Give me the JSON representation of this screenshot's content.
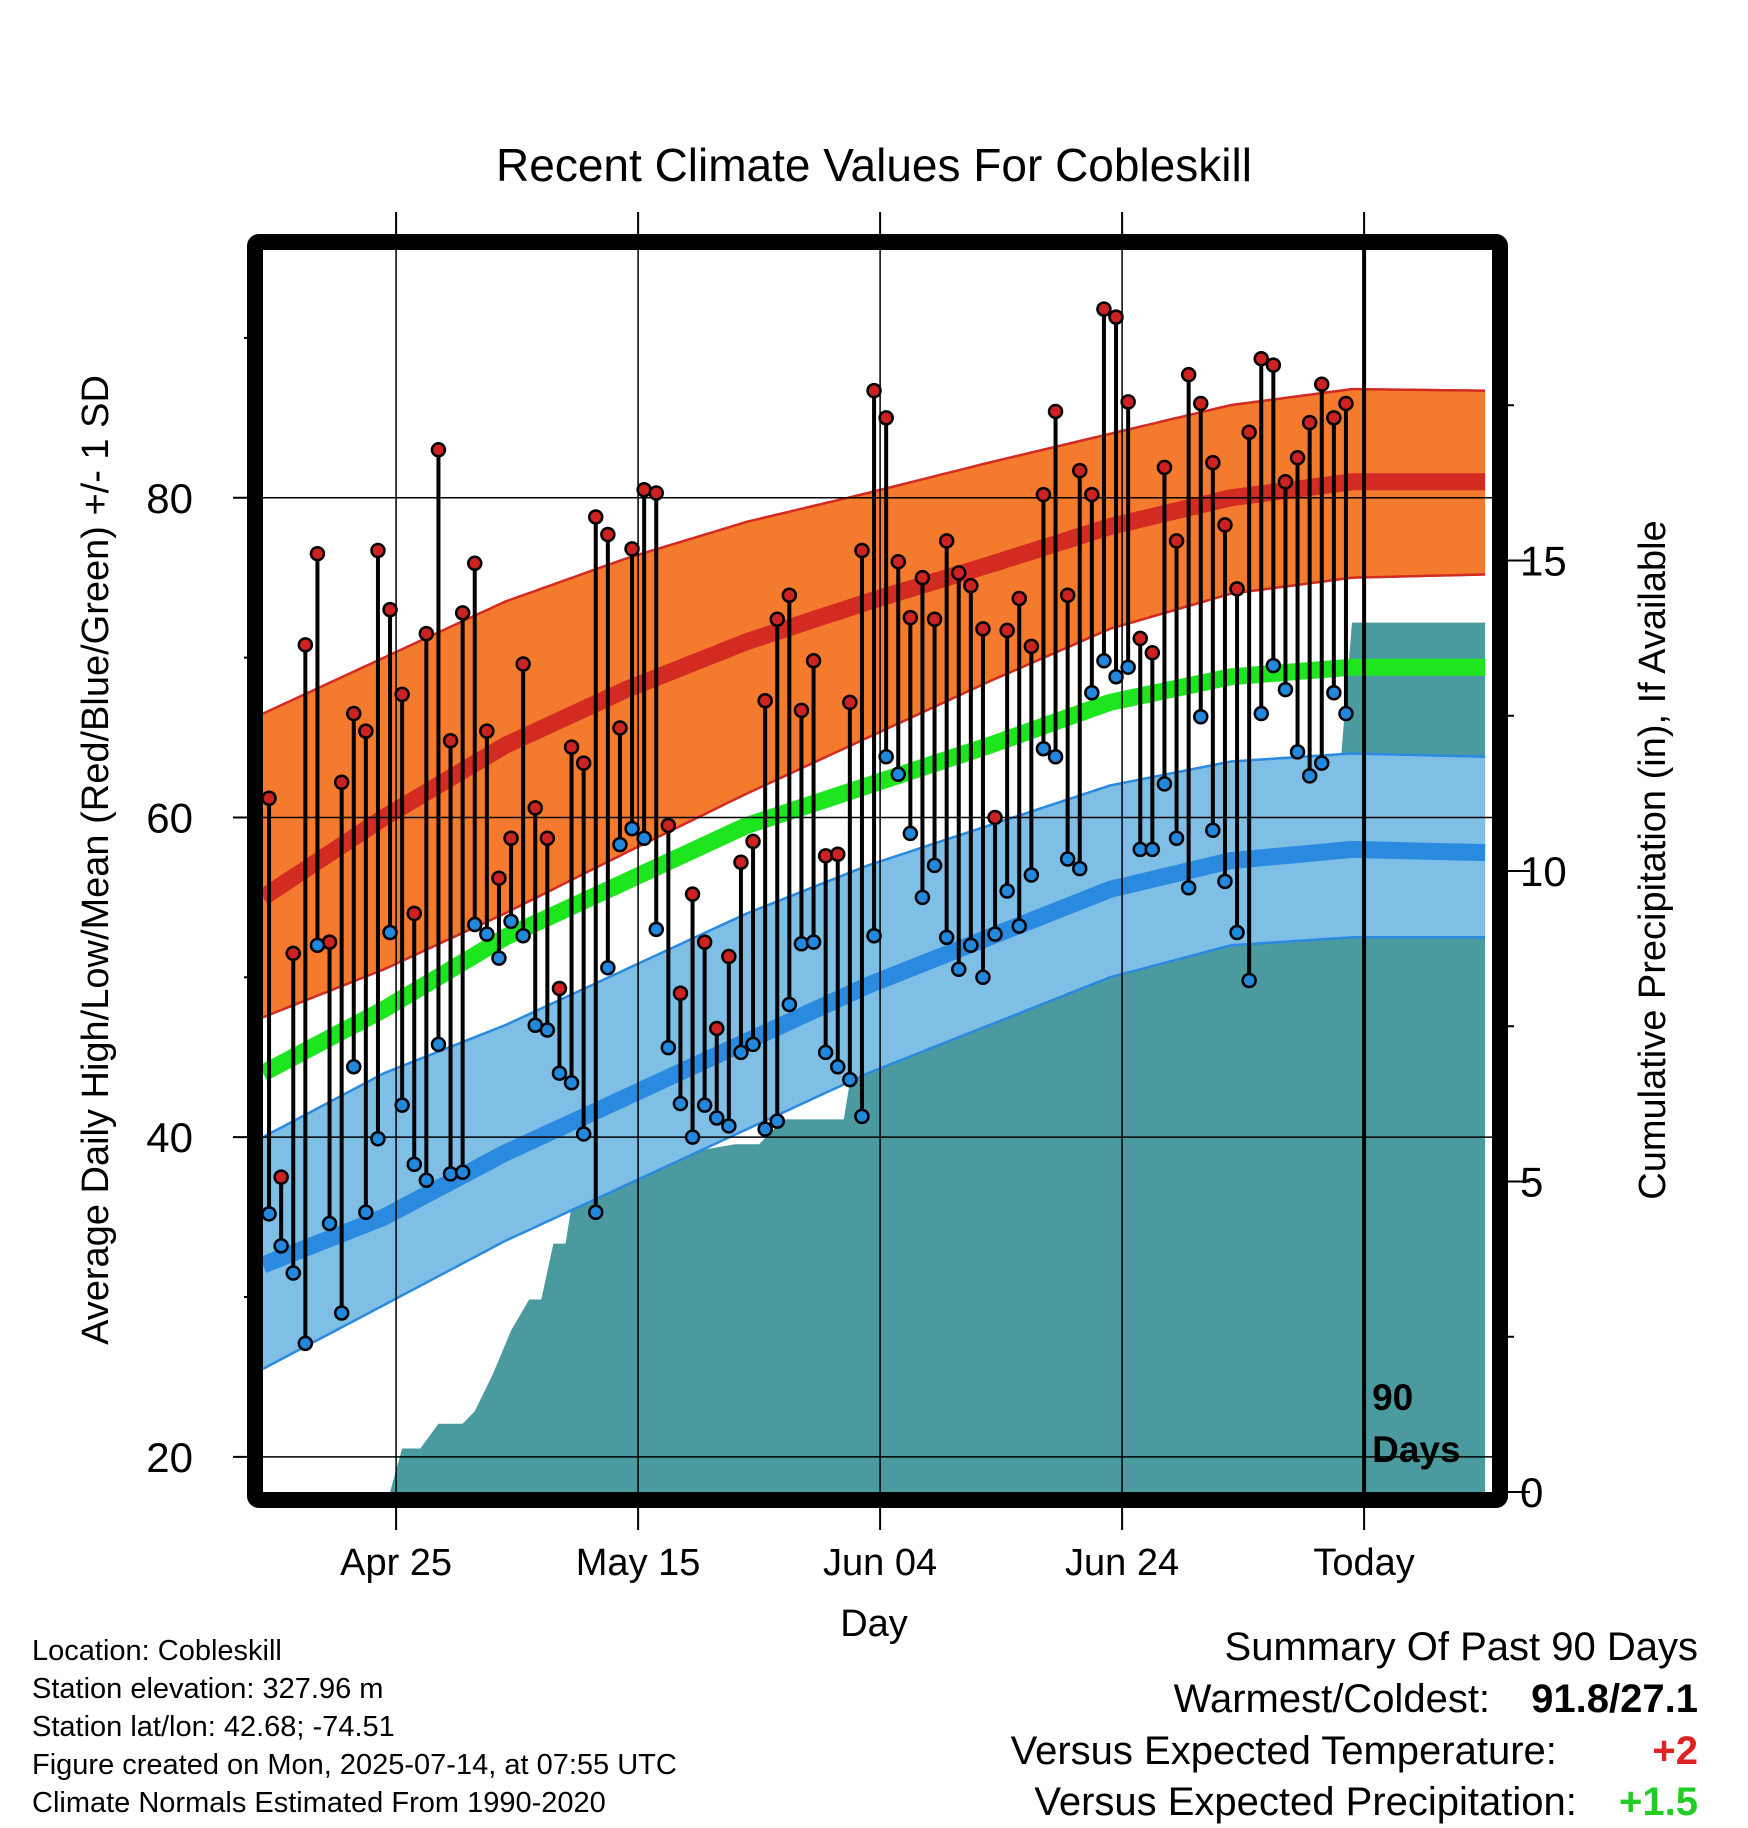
{
  "chart_data": {
    "type": "line",
    "title": "Recent Climate Values For Cobleskill",
    "xlabel": "Day",
    "ylabel": "Average Daily High/Low/Mean (Red/Blue/Green) +/- 1 SD",
    "y2label": "Cumulative Precipitation (in), If Available",
    "x_tick_labels": [
      "Apr 25",
      "May 15",
      "Jun 04",
      "Jun 24",
      "Today"
    ],
    "x_tick_days": [
      11,
      31,
      51,
      71,
      91
    ],
    "y_ticks": [
      "20",
      "40",
      "60",
      "80"
    ],
    "y_tick_values": [
      20,
      40,
      60,
      80
    ],
    "ylim": [
      17.8,
      95.5
    ],
    "y2_ticks": [
      "0",
      "5",
      "10",
      "15"
    ],
    "y2_tick_values": [
      0,
      5,
      10,
      15
    ],
    "y2lim": [
      0,
      20
    ],
    "today_label": "90\nDays",
    "today_day": 91,
    "x_range_days": [
      0,
      101
    ],
    "normals": {
      "days": [
        0,
        10,
        20,
        30,
        40,
        50,
        60,
        70,
        80,
        90,
        101
      ],
      "high_mean": [
        55.0,
        60.0,
        64.5,
        68.0,
        71.0,
        73.5,
        75.8,
        78.2,
        80.0,
        81.0,
        81.0
      ],
      "high_upper": [
        66.5,
        70.0,
        73.5,
        76.2,
        78.5,
        80.3,
        82.2,
        84.0,
        85.8,
        86.8,
        86.7
      ],
      "high_lower": [
        47.5,
        50.5,
        54.0,
        57.8,
        61.5,
        65.0,
        68.5,
        71.8,
        74.0,
        75.0,
        75.2
      ],
      "mean_mean": [
        44.0,
        48.0,
        52.5,
        56.0,
        59.5,
        62.0,
        64.5,
        67.2,
        68.8,
        69.4,
        69.4
      ],
      "low_mean": [
        32.0,
        35.0,
        39.0,
        42.5,
        46.0,
        49.5,
        52.5,
        55.5,
        57.3,
        58.0,
        57.8
      ],
      "low_upper": [
        40.0,
        44.0,
        47.0,
        50.5,
        54.0,
        57.0,
        59.5,
        62.0,
        63.5,
        64.0,
        63.8
      ],
      "low_lower": [
        25.5,
        29.5,
        33.5,
        37.0,
        40.5,
        44.0,
        47.0,
        50.0,
        52.0,
        52.5,
        52.5
      ]
    },
    "series": [
      {
        "name": "High",
        "color": "#cc2222",
        "values": [
          61.2,
          37.5,
          51.5,
          70.8,
          76.5,
          52.2,
          62.2,
          66.5,
          65.4,
          76.7,
          73.0,
          67.7,
          54.0,
          71.5,
          83.0,
          64.8,
          72.8,
          75.9,
          65.4,
          56.2,
          58.7,
          69.6,
          60.6,
          58.7,
          49.3,
          64.4,
          63.4,
          78.8,
          77.7,
          65.6,
          76.8,
          80.5,
          80.3,
          59.5,
          49.0,
          55.2,
          52.2,
          46.8,
          51.3,
          57.2,
          58.5,
          67.3,
          72.4,
          73.9,
          66.7,
          69.8,
          57.6,
          57.7,
          67.2,
          76.7,
          86.7,
          85.0,
          76.0,
          72.5,
          75.0,
          72.4,
          77.3,
          75.3,
          74.5,
          71.8,
          60.0,
          71.7,
          73.7,
          70.7,
          80.2,
          85.4,
          73.9,
          81.7,
          80.2,
          91.8,
          91.3,
          86.0,
          71.2,
          70.3,
          81.9,
          77.3,
          87.7,
          85.9,
          82.2,
          78.3,
          74.3,
          84.1,
          88.7,
          88.3,
          81.0,
          82.5,
          84.7,
          87.1,
          85.0,
          85.9
        ]
      },
      {
        "name": "Low",
        "color": "#2288dd",
        "values": [
          35.2,
          33.2,
          31.5,
          27.1,
          52.0,
          34.6,
          29.0,
          44.4,
          35.3,
          39.9,
          52.8,
          42.0,
          38.3,
          37.3,
          45.8,
          37.7,
          37.8,
          53.3,
          52.7,
          51.2,
          53.5,
          52.6,
          47.0,
          46.7,
          44.0,
          43.4,
          40.2,
          35.3,
          50.6,
          58.3,
          59.3,
          58.7,
          53.0,
          45.6,
          42.1,
          40.0,
          42.0,
          41.2,
          40.7,
          45.3,
          45.8,
          40.5,
          41.0,
          48.3,
          52.1,
          52.2,
          45.3,
          44.4,
          43.6,
          41.3,
          52.6,
          63.8,
          62.7,
          59.0,
          55.0,
          57.0,
          52.5,
          50.5,
          52.0,
          50.0,
          52.7,
          55.4,
          53.2,
          56.4,
          64.3,
          63.8,
          57.4,
          56.8,
          67.8,
          69.8,
          68.8,
          69.4,
          58.0,
          58.0,
          62.1,
          58.7,
          55.6,
          66.3,
          59.2,
          56.0,
          52.8,
          49.8,
          66.5,
          69.5,
          68.0,
          64.1,
          62.6,
          63.4,
          67.8,
          66.5
        ]
      }
    ],
    "precipitation": {
      "name": "Cumulative Precipitation",
      "color": "#4a9aa0",
      "days": [
        0,
        10.5,
        11.5,
        13,
        14.5,
        16.5,
        17.5,
        19,
        20.5,
        22,
        23,
        24,
        25,
        26,
        27,
        28,
        33,
        35,
        36,
        39,
        41,
        42,
        43,
        46,
        47,
        48,
        49,
        50,
        51,
        52,
        53,
        54,
        56,
        58,
        62,
        64,
        65,
        68,
        69,
        70,
        72,
        74,
        76,
        77,
        80,
        81,
        84,
        85,
        86,
        87,
        88,
        89,
        90,
        101
      ],
      "values": [
        0,
        0,
        0.7,
        0.7,
        1.1,
        1.1,
        1.3,
        1.9,
        2.6,
        3.1,
        3.1,
        4.0,
        4.0,
        5.2,
        5.2,
        5.2,
        5.4,
        5.5,
        5.5,
        5.6,
        5.6,
        5.8,
        6.0,
        6.0,
        6.0,
        6.0,
        7.2,
        7.2,
        7.2,
        7.2,
        7.2,
        7.6,
        8.6,
        9.9,
        10.0,
        10.1,
        10.2,
        10.3,
        10.6,
        10.9,
        11.0,
        11.2,
        11.3,
        11.4,
        11.5,
        11.5,
        11.6,
        11.6,
        11.6,
        11.6,
        11.6,
        11.6,
        14.0,
        14.0
      ]
    }
  },
  "footer": {
    "location": "Location: Cobleskill",
    "elevation": "Station elevation: 327.96 m",
    "latlon": "Station lat/lon: 42.68; -74.51",
    "created": "Figure created on Mon, 2025-07-14, at 07:55 UTC",
    "normals": "Climate Normals Estimated From 1990-2020"
  },
  "summary": {
    "title": "Summary Of Past 90 Days",
    "warm_cold_label": "Warmest/Coldest:",
    "warm_cold_value": "91.8/27.1",
    "temp_label": "Versus Expected Temperature:",
    "temp_value": "+2",
    "temp_color": "#dd2222",
    "precip_label": "Versus Expected Precipitation:",
    "precip_value": "+1.5",
    "precip_color": "#22cc22"
  }
}
